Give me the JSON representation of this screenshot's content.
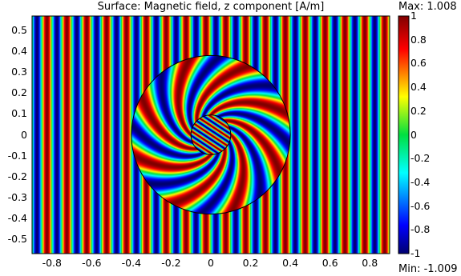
{
  "plot": {
    "title": "Surface: Magnetic field, z component [A/m]",
    "max_label": "Max: 1.008",
    "min_label": "Min: -1.009",
    "x_ticks": [
      "-0.8",
      "-0.6",
      "-0.4",
      "-0.2",
      "0",
      "0.2",
      "0.4",
      "0.6",
      "0.8"
    ],
    "y_ticks": [
      "0.5",
      "0.4",
      "0.3",
      "0.2",
      "0.1",
      "0",
      "-0.1",
      "-0.2",
      "-0.3",
      "-0.4",
      "-0.5"
    ],
    "colorbar_ticks": [
      "1",
      "0.8",
      "0.6",
      "0.4",
      "0.2",
      "0",
      "-0.2",
      "-0.4",
      "-0.6",
      "-0.8",
      "-1"
    ]
  },
  "chart_data": {
    "type": "heatmap",
    "title": "Surface: Magnetic field, z component [A/m]",
    "quantity": "Magnetic field, z component",
    "unit": "A/m",
    "value_range": [
      -1.009,
      1.008
    ],
    "colorbar_range": [
      -1,
      1
    ],
    "xlim": [
      -0.9,
      0.9
    ],
    "ylim": [
      -0.57,
      0.57
    ],
    "x_ticks": [
      -0.8,
      -0.6,
      -0.4,
      -0.2,
      0,
      0.2,
      0.4,
      0.6,
      0.8
    ],
    "y_ticks": [
      0.5,
      0.4,
      0.3,
      0.2,
      0.1,
      0,
      -0.1,
      -0.2,
      -0.3,
      -0.4,
      -0.5
    ],
    "colorbar_ticks": [
      1,
      0.8,
      0.6,
      0.4,
      0.2,
      0,
      -0.2,
      -0.4,
      -0.6,
      -0.8,
      -1
    ],
    "colormap": "rainbow",
    "outer_circle_radius": 0.4,
    "inner_circle_radius": 0.1,
    "background_stripe_period": 0.1
  },
  "colors": {
    "cmap_low": "#000070",
    "cmap_blue": "#0000ff",
    "cmap_cyan": "#00ffff",
    "cmap_green": "#00e040",
    "cmap_yellow": "#ffff00",
    "cmap_red": "#ff0000",
    "cmap_high": "#800000",
    "boundary": "#000000"
  }
}
